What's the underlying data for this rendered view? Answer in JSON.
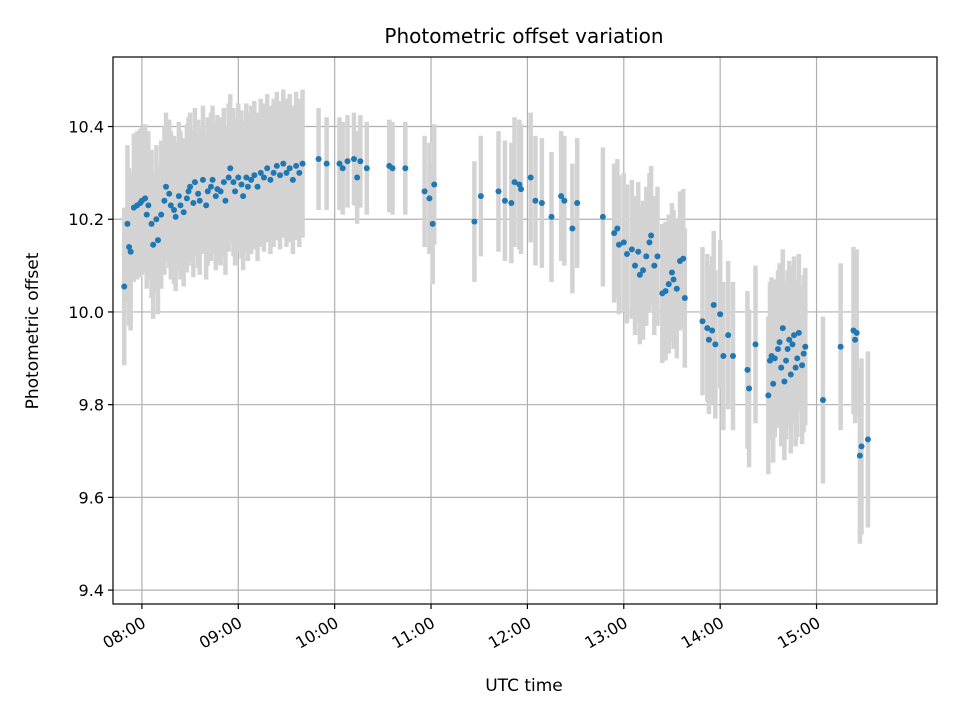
{
  "chart_data": {
    "type": "scatter",
    "title": "Photometric offset variation",
    "xlabel": "UTC time",
    "ylabel": "Photometric offset",
    "x_tick_labels": [
      "08:00",
      "09:00",
      "10:00",
      "11:00",
      "12:00",
      "13:00",
      "14:00",
      "15:00"
    ],
    "y_tick_labels": [
      "9.4",
      "9.6",
      "9.8",
      "10.0",
      "10.2",
      "10.4"
    ],
    "xlim": [
      "07:42",
      "16:15"
    ],
    "ylim": [
      9.37,
      10.55
    ],
    "grid": true,
    "point_color": "#1f77b4",
    "errorbar_color": "#d3d3d3",
    "series": [
      {
        "points": [
          {
            "t": "07:49",
            "y": 10.055,
            "e": 0.17
          },
          {
            "t": "07:51",
            "y": 10.19,
            "e": 0.17
          },
          {
            "t": "07:52",
            "y": 10.14,
            "e": 0.17
          },
          {
            "t": "07:53",
            "y": 10.13,
            "e": 0.17
          },
          {
            "t": "07:55",
            "y": 10.225,
            "e": 0.16
          },
          {
            "t": "07:57",
            "y": 10.23,
            "e": 0.16
          },
          {
            "t": "07:59",
            "y": 10.235,
            "e": 0.16
          },
          {
            "t": "08:00",
            "y": 10.24,
            "e": 0.16
          },
          {
            "t": "08:02",
            "y": 10.245,
            "e": 0.16
          },
          {
            "t": "08:03",
            "y": 10.21,
            "e": 0.16
          },
          {
            "t": "08:04",
            "y": 10.23,
            "e": 0.16
          },
          {
            "t": "08:06",
            "y": 10.19,
            "e": 0.16
          },
          {
            "t": "08:07",
            "y": 10.145,
            "e": 0.16
          },
          {
            "t": "08:09",
            "y": 10.2,
            "e": 0.16
          },
          {
            "t": "08:10",
            "y": 10.155,
            "e": 0.16
          },
          {
            "t": "08:12",
            "y": 10.21,
            "e": 0.16
          },
          {
            "t": "08:14",
            "y": 10.24,
            "e": 0.16
          },
          {
            "t": "08:15",
            "y": 10.27,
            "e": 0.16
          },
          {
            "t": "08:17",
            "y": 10.255,
            "e": 0.16
          },
          {
            "t": "08:18",
            "y": 10.23,
            "e": 0.16
          },
          {
            "t": "08:20",
            "y": 10.22,
            "e": 0.16
          },
          {
            "t": "08:21",
            "y": 10.205,
            "e": 0.16
          },
          {
            "t": "08:23",
            "y": 10.25,
            "e": 0.16
          },
          {
            "t": "08:24",
            "y": 10.23,
            "e": 0.16
          },
          {
            "t": "08:26",
            "y": 10.215,
            "e": 0.16
          },
          {
            "t": "08:28",
            "y": 10.245,
            "e": 0.16
          },
          {
            "t": "08:29",
            "y": 10.26,
            "e": 0.16
          },
          {
            "t": "08:30",
            "y": 10.27,
            "e": 0.16
          },
          {
            "t": "08:32",
            "y": 10.235,
            "e": 0.16
          },
          {
            "t": "08:33",
            "y": 10.28,
            "e": 0.16
          },
          {
            "t": "08:35",
            "y": 10.255,
            "e": 0.16
          },
          {
            "t": "08:36",
            "y": 10.24,
            "e": 0.16
          },
          {
            "t": "08:38",
            "y": 10.285,
            "e": 0.16
          },
          {
            "t": "08:40",
            "y": 10.23,
            "e": 0.16
          },
          {
            "t": "08:41",
            "y": 10.26,
            "e": 0.16
          },
          {
            "t": "08:43",
            "y": 10.27,
            "e": 0.16
          },
          {
            "t": "08:44",
            "y": 10.285,
            "e": 0.16
          },
          {
            "t": "08:46",
            "y": 10.25,
            "e": 0.16
          },
          {
            "t": "08:47",
            "y": 10.265,
            "e": 0.16
          },
          {
            "t": "08:49",
            "y": 10.26,
            "e": 0.16
          },
          {
            "t": "08:51",
            "y": 10.28,
            "e": 0.16
          },
          {
            "t": "08:52",
            "y": 10.24,
            "e": 0.16
          },
          {
            "t": "08:54",
            "y": 10.29,
            "e": 0.16
          },
          {
            "t": "08:55",
            "y": 10.31,
            "e": 0.16
          },
          {
            "t": "08:57",
            "y": 10.28,
            "e": 0.16
          },
          {
            "t": "08:58",
            "y": 10.26,
            "e": 0.16
          },
          {
            "t": "09:00",
            "y": 10.29,
            "e": 0.16
          },
          {
            "t": "09:02",
            "y": 10.275,
            "e": 0.16
          },
          {
            "t": "09:03",
            "y": 10.25,
            "e": 0.16
          },
          {
            "t": "09:05",
            "y": 10.29,
            "e": 0.16
          },
          {
            "t": "09:06",
            "y": 10.27,
            "e": 0.16
          },
          {
            "t": "09:08",
            "y": 10.285,
            "e": 0.16
          },
          {
            "t": "09:10",
            "y": 10.295,
            "e": 0.16
          },
          {
            "t": "09:12",
            "y": 10.27,
            "e": 0.16
          },
          {
            "t": "09:14",
            "y": 10.3,
            "e": 0.16
          },
          {
            "t": "09:16",
            "y": 10.29,
            "e": 0.16
          },
          {
            "t": "09:18",
            "y": 10.31,
            "e": 0.16
          },
          {
            "t": "09:20",
            "y": 10.285,
            "e": 0.16
          },
          {
            "t": "09:22",
            "y": 10.3,
            "e": 0.16
          },
          {
            "t": "09:24",
            "y": 10.315,
            "e": 0.16
          },
          {
            "t": "09:26",
            "y": 10.295,
            "e": 0.16
          },
          {
            "t": "09:28",
            "y": 10.32,
            "e": 0.16
          },
          {
            "t": "09:30",
            "y": 10.3,
            "e": 0.16
          },
          {
            "t": "09:32",
            "y": 10.31,
            "e": 0.16
          },
          {
            "t": "09:34",
            "y": 10.285,
            "e": 0.16
          },
          {
            "t": "09:36",
            "y": 10.315,
            "e": 0.16
          },
          {
            "t": "09:38",
            "y": 10.3,
            "e": 0.16
          },
          {
            "t": "09:40",
            "y": 10.32,
            "e": 0.16
          },
          {
            "t": "09:50",
            "y": 10.33,
            "e": 0.11
          },
          {
            "t": "09:55",
            "y": 10.32,
            "e": 0.1
          },
          {
            "t": "10:03",
            "y": 10.32,
            "e": 0.1
          },
          {
            "t": "10:05",
            "y": 10.31,
            "e": 0.1
          },
          {
            "t": "10:08",
            "y": 10.325,
            "e": 0.1
          },
          {
            "t": "10:12",
            "y": 10.33,
            "e": 0.1
          },
          {
            "t": "10:14",
            "y": 10.29,
            "e": 0.1
          },
          {
            "t": "10:16",
            "y": 10.325,
            "e": 0.1
          },
          {
            "t": "10:20",
            "y": 10.31,
            "e": 0.1
          },
          {
            "t": "10:34",
            "y": 10.315,
            "e": 0.1
          },
          {
            "t": "10:36",
            "y": 10.31,
            "e": 0.1
          },
          {
            "t": "10:44",
            "y": 10.31,
            "e": 0.1
          },
          {
            "t": "10:56",
            "y": 10.26,
            "e": 0.12
          },
          {
            "t": "10:59",
            "y": 10.245,
            "e": 0.12
          },
          {
            "t": "11:01",
            "y": 10.19,
            "e": 0.13
          },
          {
            "t": "11:02",
            "y": 10.275,
            "e": 0.13
          },
          {
            "t": "11:27",
            "y": 10.195,
            "e": 0.13
          },
          {
            "t": "11:31",
            "y": 10.25,
            "e": 0.13
          },
          {
            "t": "11:42",
            "y": 10.26,
            "e": 0.13
          },
          {
            "t": "11:46",
            "y": 10.24,
            "e": 0.13
          },
          {
            "t": "11:50",
            "y": 10.235,
            "e": 0.13
          },
          {
            "t": "11:52",
            "y": 10.28,
            "e": 0.14
          },
          {
            "t": "11:55",
            "y": 10.275,
            "e": 0.14
          },
          {
            "t": "11:56",
            "y": 10.265,
            "e": 0.14
          },
          {
            "t": "12:02",
            "y": 10.29,
            "e": 0.14
          },
          {
            "t": "12:05",
            "y": 10.24,
            "e": 0.14
          },
          {
            "t": "12:09",
            "y": 10.235,
            "e": 0.14
          },
          {
            "t": "12:15",
            "y": 10.205,
            "e": 0.14
          },
          {
            "t": "12:21",
            "y": 10.25,
            "e": 0.14
          },
          {
            "t": "12:23",
            "y": 10.24,
            "e": 0.14
          },
          {
            "t": "12:28",
            "y": 10.18,
            "e": 0.14
          },
          {
            "t": "12:31",
            "y": 10.235,
            "e": 0.14
          },
          {
            "t": "12:47",
            "y": 10.205,
            "e": 0.15
          },
          {
            "t": "12:54",
            "y": 10.17,
            "e": 0.15
          },
          {
            "t": "12:56",
            "y": 10.18,
            "e": 0.15
          },
          {
            "t": "12:57",
            "y": 10.145,
            "e": 0.15
          },
          {
            "t": "13:00",
            "y": 10.15,
            "e": 0.15
          },
          {
            "t": "13:02",
            "y": 10.125,
            "e": 0.15
          },
          {
            "t": "13:05",
            "y": 10.135,
            "e": 0.15
          },
          {
            "t": "13:07",
            "y": 10.1,
            "e": 0.15
          },
          {
            "t": "13:09",
            "y": 10.13,
            "e": 0.15
          },
          {
            "t": "13:10",
            "y": 10.08,
            "e": 0.15
          },
          {
            "t": "13:12",
            "y": 10.09,
            "e": 0.15
          },
          {
            "t": "13:14",
            "y": 10.12,
            "e": 0.15
          },
          {
            "t": "13:16",
            "y": 10.15,
            "e": 0.15
          },
          {
            "t": "13:17",
            "y": 10.165,
            "e": 0.15
          },
          {
            "t": "13:19",
            "y": 10.1,
            "e": 0.15
          },
          {
            "t": "13:21",
            "y": 10.12,
            "e": 0.15
          },
          {
            "t": "13:24",
            "y": 10.04,
            "e": 0.15
          },
          {
            "t": "13:26",
            "y": 10.045,
            "e": 0.15
          },
          {
            "t": "13:28",
            "y": 10.06,
            "e": 0.15
          },
          {
            "t": "13:30",
            "y": 10.085,
            "e": 0.15
          },
          {
            "t": "13:31",
            "y": 10.07,
            "e": 0.15
          },
          {
            "t": "13:33",
            "y": 10.05,
            "e": 0.15
          },
          {
            "t": "13:35",
            "y": 10.11,
            "e": 0.15
          },
          {
            "t": "13:37",
            "y": 10.115,
            "e": 0.15
          },
          {
            "t": "13:38",
            "y": 10.03,
            "e": 0.15
          },
          {
            "t": "13:49",
            "y": 9.98,
            "e": 0.16
          },
          {
            "t": "13:52",
            "y": 9.965,
            "e": 0.16
          },
          {
            "t": "13:53",
            "y": 9.94,
            "e": 0.16
          },
          {
            "t": "13:55",
            "y": 9.96,
            "e": 0.16
          },
          {
            "t": "13:56",
            "y": 10.015,
            "e": 0.16
          },
          {
            "t": "13:57",
            "y": 9.93,
            "e": 0.16
          },
          {
            "t": "14:00",
            "y": 9.995,
            "e": 0.16
          },
          {
            "t": "14:02",
            "y": 9.905,
            "e": 0.16
          },
          {
            "t": "14:05",
            "y": 9.95,
            "e": 0.16
          },
          {
            "t": "14:08",
            "y": 9.905,
            "e": 0.16
          },
          {
            "t": "14:17",
            "y": 9.875,
            "e": 0.17
          },
          {
            "t": "14:18",
            "y": 9.835,
            "e": 0.17
          },
          {
            "t": "14:22",
            "y": 9.93,
            "e": 0.17
          },
          {
            "t": "14:30",
            "y": 9.82,
            "e": 0.17
          },
          {
            "t": "14:31",
            "y": 9.895,
            "e": 0.17
          },
          {
            "t": "14:32",
            "y": 9.905,
            "e": 0.17
          },
          {
            "t": "14:33",
            "y": 9.845,
            "e": 0.17
          },
          {
            "t": "14:34",
            "y": 9.9,
            "e": 0.17
          },
          {
            "t": "14:36",
            "y": 9.92,
            "e": 0.17
          },
          {
            "t": "14:37",
            "y": 9.935,
            "e": 0.17
          },
          {
            "t": "14:38",
            "y": 9.88,
            "e": 0.17
          },
          {
            "t": "14:39",
            "y": 9.965,
            "e": 0.17
          },
          {
            "t": "14:40",
            "y": 9.85,
            "e": 0.17
          },
          {
            "t": "14:41",
            "y": 9.895,
            "e": 0.17
          },
          {
            "t": "14:42",
            "y": 9.92,
            "e": 0.17
          },
          {
            "t": "14:43",
            "y": 9.94,
            "e": 0.17
          },
          {
            "t": "14:44",
            "y": 9.865,
            "e": 0.17
          },
          {
            "t": "14:45",
            "y": 9.93,
            "e": 0.17
          },
          {
            "t": "14:46",
            "y": 9.95,
            "e": 0.17
          },
          {
            "t": "14:47",
            "y": 9.88,
            "e": 0.17
          },
          {
            "t": "14:48",
            "y": 9.9,
            "e": 0.17
          },
          {
            "t": "14:49",
            "y": 9.955,
            "e": 0.17
          },
          {
            "t": "14:51",
            "y": 9.885,
            "e": 0.17
          },
          {
            "t": "14:52",
            "y": 9.91,
            "e": 0.17
          },
          {
            "t": "14:53",
            "y": 9.925,
            "e": 0.17
          },
          {
            "t": "15:04",
            "y": 9.81,
            "e": 0.18
          },
          {
            "t": "15:15",
            "y": 9.925,
            "e": 0.18
          },
          {
            "t": "15:23",
            "y": 9.96,
            "e": 0.18
          },
          {
            "t": "15:24",
            "y": 9.94,
            "e": 0.18
          },
          {
            "t": "15:25",
            "y": 9.955,
            "e": 0.18
          },
          {
            "t": "15:27",
            "y": 9.69,
            "e": 0.19
          },
          {
            "t": "15:28",
            "y": 9.71,
            "e": 0.19
          },
          {
            "t": "15:32",
            "y": 9.725,
            "e": 0.19
          }
        ]
      }
    ]
  }
}
